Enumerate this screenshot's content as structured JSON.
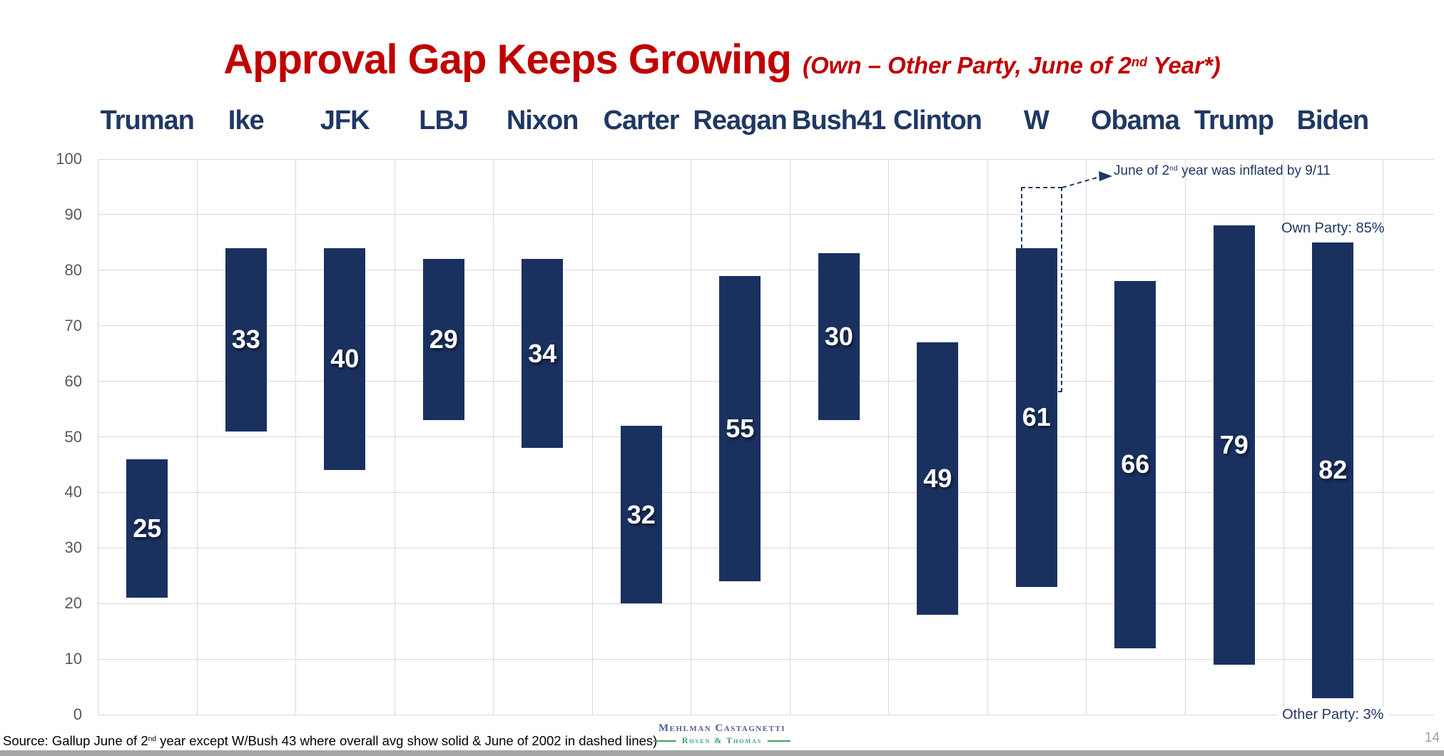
{
  "page": {
    "background": "#ffffff",
    "page_number": "14",
    "footer_bar_color": "#a6a6a6"
  },
  "title": {
    "main": "Approval Gap Keeps Growing",
    "subtitle_pre": "(Own – Other Party, June of 2",
    "subtitle_sup": "nd",
    "subtitle_post": " Year*)",
    "color": "#c00000"
  },
  "source": {
    "pre": "Source: Gallup June of 2",
    "sup": "nd",
    "post": " year except W/Bush 43 where overall avg show solid & June of 2002 in dashed lines)"
  },
  "logo": {
    "line1": "Mehlman Castagnetti",
    "line2": "Rosen & Thomas",
    "line1_color": "#4f5d9e",
    "line2_color": "#3fa264"
  },
  "chart_data": {
    "type": "bar",
    "subtype": "floating-range-columns",
    "title": "Approval Gap Keeps Growing (Own – Other Party, June of 2nd Year*)",
    "ylim": [
      0,
      100
    ],
    "ytick_step": 10,
    "grid": true,
    "legend": "none",
    "categories": [
      "Truman",
      "Ike",
      "JFK",
      "LBJ",
      "Nixon",
      "Carter",
      "Reagan",
      "Bush41",
      "Clinton",
      "W",
      "Obama",
      "Trump",
      "Biden"
    ],
    "bars": [
      {
        "president": "Truman",
        "low": 21,
        "high": 46,
        "gap": 25
      },
      {
        "president": "Ike",
        "low": 51,
        "high": 84,
        "gap": 33
      },
      {
        "president": "JFK",
        "low": 44,
        "high": 84,
        "gap": 40
      },
      {
        "president": "LBJ",
        "low": 53,
        "high": 82,
        "gap": 29
      },
      {
        "president": "Nixon",
        "low": 48,
        "high": 82,
        "gap": 34
      },
      {
        "president": "Carter",
        "low": 20,
        "high": 52,
        "gap": 32
      },
      {
        "president": "Reagan",
        "low": 24,
        "high": 79,
        "gap": 55
      },
      {
        "president": "Bush41",
        "low": 53,
        "high": 83,
        "gap": 30
      },
      {
        "president": "Clinton",
        "low": 18,
        "high": 67,
        "gap": 49
      },
      {
        "president": "W",
        "low": 23,
        "high": 84,
        "gap": 61
      },
      {
        "president": "Obama",
        "low": 12,
        "high": 78,
        "gap": 66
      },
      {
        "president": "Trump",
        "low": 9,
        "high": 88,
        "gap": 79
      },
      {
        "president": "Biden",
        "low": 3,
        "high": 85,
        "gap": 82
      }
    ],
    "bar_color": "#1a3160",
    "bar_value_color": "#ffffff",
    "category_label_color": "#1f3864",
    "axis_label_color": "#595959",
    "gridline_color": "#d9d9d9",
    "annotations": {
      "inflated_pre": "June of 2",
      "inflated_sup": "nd",
      "inflated_post": " year was inflated by 9/11",
      "own_party_label": "Own Party: 85%",
      "other_party_label": "Other Party: 3%",
      "dashed_overlay": {
        "president": "W",
        "low": 58,
        "high": 95
      }
    }
  }
}
